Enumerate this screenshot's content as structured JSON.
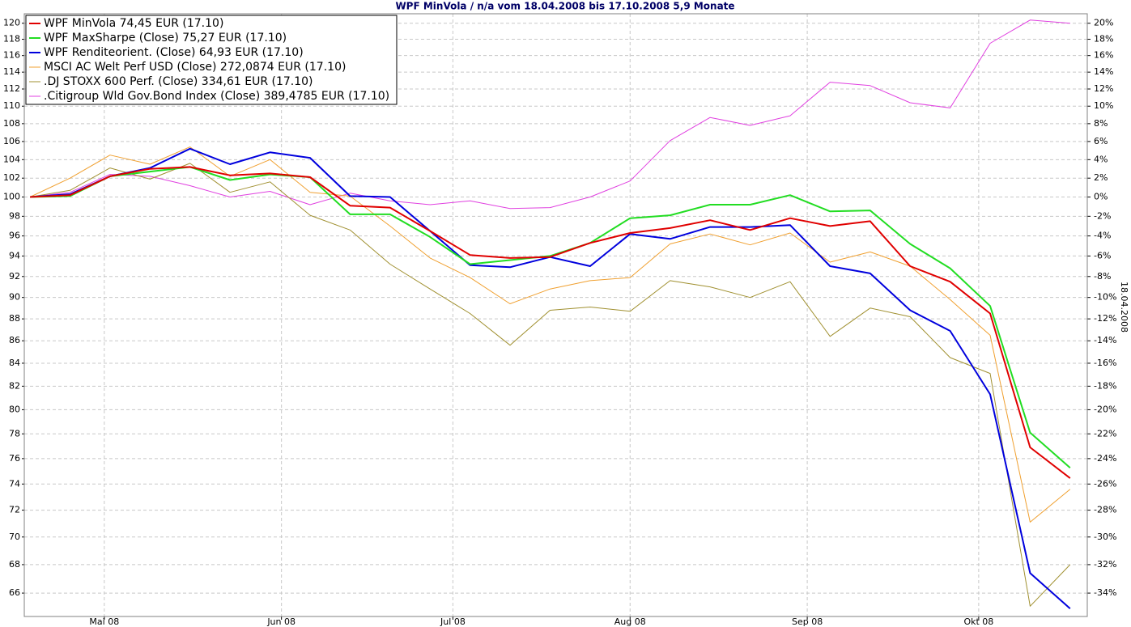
{
  "chart_data": {
    "type": "line",
    "title": "WPF MinVola / n/a vom 18.04.2008 bis 17.10.2008 5,9 Monate",
    "y2label": "18.04.2008",
    "x": [
      "2008-04-18",
      "2008-04-25",
      "2008-05-02",
      "2008-05-09",
      "2008-05-16",
      "2008-05-23",
      "2008-05-30",
      "2008-06-06",
      "2008-06-13",
      "2008-06-20",
      "2008-06-27",
      "2008-07-04",
      "2008-07-11",
      "2008-07-18",
      "2008-07-25",
      "2008-08-01",
      "2008-08-08",
      "2008-08-15",
      "2008-08-22",
      "2008-08-29",
      "2008-09-05",
      "2008-09-12",
      "2008-09-19",
      "2008-09-26",
      "2008-10-03",
      "2008-10-10",
      "2008-10-17"
    ],
    "xlim": [
      "2008-04-17",
      "2008-10-20"
    ],
    "xticks": [
      {
        "value": "2008-05-01",
        "label": "Mai 08"
      },
      {
        "value": "2008-06-01",
        "label": "Jun 08"
      },
      {
        "value": "2008-07-01",
        "label": "Jul 08"
      },
      {
        "value": "2008-08-01",
        "label": "Aug 08"
      },
      {
        "value": "2008-09-01",
        "label": "Sep 08"
      },
      {
        "value": "2008-10-01",
        "label": "Okt 08"
      }
    ],
    "log_scale": true,
    "grid": true,
    "legend": "upper left",
    "ylim": [
      64.4,
      121.2
    ],
    "yticks": [
      66,
      68,
      70,
      72,
      74,
      76,
      78,
      80,
      82,
      84,
      86,
      88,
      90,
      92,
      94,
      96,
      98,
      100,
      102,
      104,
      106,
      108,
      110,
      112,
      114,
      116,
      118,
      120
    ],
    "y2lim": [
      -35.6,
      21.2
    ],
    "y2ticks": [
      {
        "value": -34,
        "label": "-34%"
      },
      {
        "value": -32,
        "label": "-32%"
      },
      {
        "value": -30,
        "label": "-30%"
      },
      {
        "value": -28,
        "label": "-28%"
      },
      {
        "value": -26,
        "label": "-26%"
      },
      {
        "value": -24,
        "label": "-24%"
      },
      {
        "value": -22,
        "label": "-22%"
      },
      {
        "value": -20,
        "label": "-20%"
      },
      {
        "value": -18,
        "label": "-18%"
      },
      {
        "value": -16,
        "label": "-16%"
      },
      {
        "value": -14,
        "label": "-14%"
      },
      {
        "value": -12,
        "label": "-12%"
      },
      {
        "value": -10,
        "label": "-10%"
      },
      {
        "value": -8,
        "label": "-8%"
      },
      {
        "value": -6,
        "label": "-6%"
      },
      {
        "value": -4,
        "label": "-4%"
      },
      {
        "value": -2,
        "label": "-2%"
      },
      {
        "value": 0,
        "label": "0%"
      },
      {
        "value": 2,
        "label": "2%"
      },
      {
        "value": 4,
        "label": "4%"
      },
      {
        "value": 6,
        "label": "6%"
      },
      {
        "value": 8,
        "label": "8%"
      },
      {
        "value": 10,
        "label": "10%"
      },
      {
        "value": 12,
        "label": "12%"
      },
      {
        "value": 14,
        "label": "14%"
      },
      {
        "value": 16,
        "label": "16%"
      },
      {
        "value": 18,
        "label": "18%"
      },
      {
        "value": 20,
        "label": "20%"
      }
    ],
    "series": [
      {
        "name": "WPF MinVola 74,45 EUR (17.10)",
        "color": "#e00000",
        "linewidth": 2,
        "values": [
          100,
          100.2,
          102.2,
          103,
          103.2,
          102.3,
          102.5,
          102.1,
          99.1,
          98.9,
          96.5,
          94.1,
          93.8,
          93.9,
          95.3,
          96.3,
          96.8,
          97.6,
          96.6,
          97.8,
          97.0,
          97.5,
          93.0,
          91.5,
          88.5,
          76.9,
          74.45
        ]
      },
      {
        "name": "WPF MaxSharpe (Close) 75,27 EUR (17.10)",
        "color": "#22dd22",
        "linewidth": 2,
        "values": [
          100,
          100.1,
          102.2,
          102.7,
          103.2,
          101.8,
          102.4,
          102.1,
          98.2,
          98.2,
          95.9,
          93.2,
          93.6,
          94.0,
          95.3,
          97.8,
          98.1,
          99.2,
          99.2,
          100.2,
          98.5,
          98.6,
          95.2,
          92.8,
          89.2,
          78.1,
          75.27
        ]
      },
      {
        "name": "WPF Renditeorient. (Close) 64,93 EUR (17.10)",
        "color": "#0000dd",
        "linewidth": 2,
        "values": [
          100,
          100.3,
          102.2,
          103.1,
          105.2,
          103.5,
          104.8,
          104.2,
          100.1,
          100.0,
          96.5,
          93.1,
          92.9,
          93.9,
          93.0,
          96.2,
          95.7,
          96.9,
          96.9,
          97.1,
          93.0,
          92.3,
          88.8,
          86.9,
          81.3,
          67.4,
          64.93
        ]
      },
      {
        "name": "MSCI AC Welt Perf USD (Close) 272,0874 EUR (17.10)",
        "color": "#f0a030",
        "linewidth": 1,
        "values": [
          100,
          102.0,
          104.5,
          103.5,
          105.4,
          102.2,
          104.0,
          100.5,
          100.1,
          97.0,
          93.8,
          91.9,
          89.4,
          90.8,
          91.6,
          91.9,
          95.2,
          96.2,
          95.1,
          96.3,
          93.4,
          94.4,
          93.0,
          89.8,
          86.5,
          71.1,
          73.6
        ]
      },
      {
        "name": ".DJ STOXX 600 Perf. (Close) 334,61 EUR (17.10)",
        "color": "#a09030",
        "linewidth": 1,
        "values": [
          100,
          100.7,
          103.1,
          101.9,
          103.6,
          100.5,
          101.6,
          98.1,
          96.6,
          93.2,
          90.8,
          88.5,
          85.6,
          88.8,
          89.1,
          88.7,
          91.6,
          91.0,
          90.0,
          91.5,
          86.4,
          89.0,
          88.2,
          84.5,
          83.1,
          65.1,
          68.0
        ]
      },
      {
        "name": ".Citigroup Wld Gov.Bond Index (Close) 389,4785 EUR (17.10)",
        "color": "#e040e0",
        "linewidth": 1,
        "values": [
          100,
          100.5,
          102.4,
          102.2,
          101.2,
          100.0,
          100.6,
          99.2,
          100.4,
          99.6,
          99.2,
          99.6,
          98.8,
          98.9,
          100.0,
          101.7,
          106.1,
          108.7,
          107.8,
          108.9,
          112.8,
          112.4,
          110.4,
          109.8,
          117.5,
          120.4,
          120.0
        ]
      }
    ]
  }
}
